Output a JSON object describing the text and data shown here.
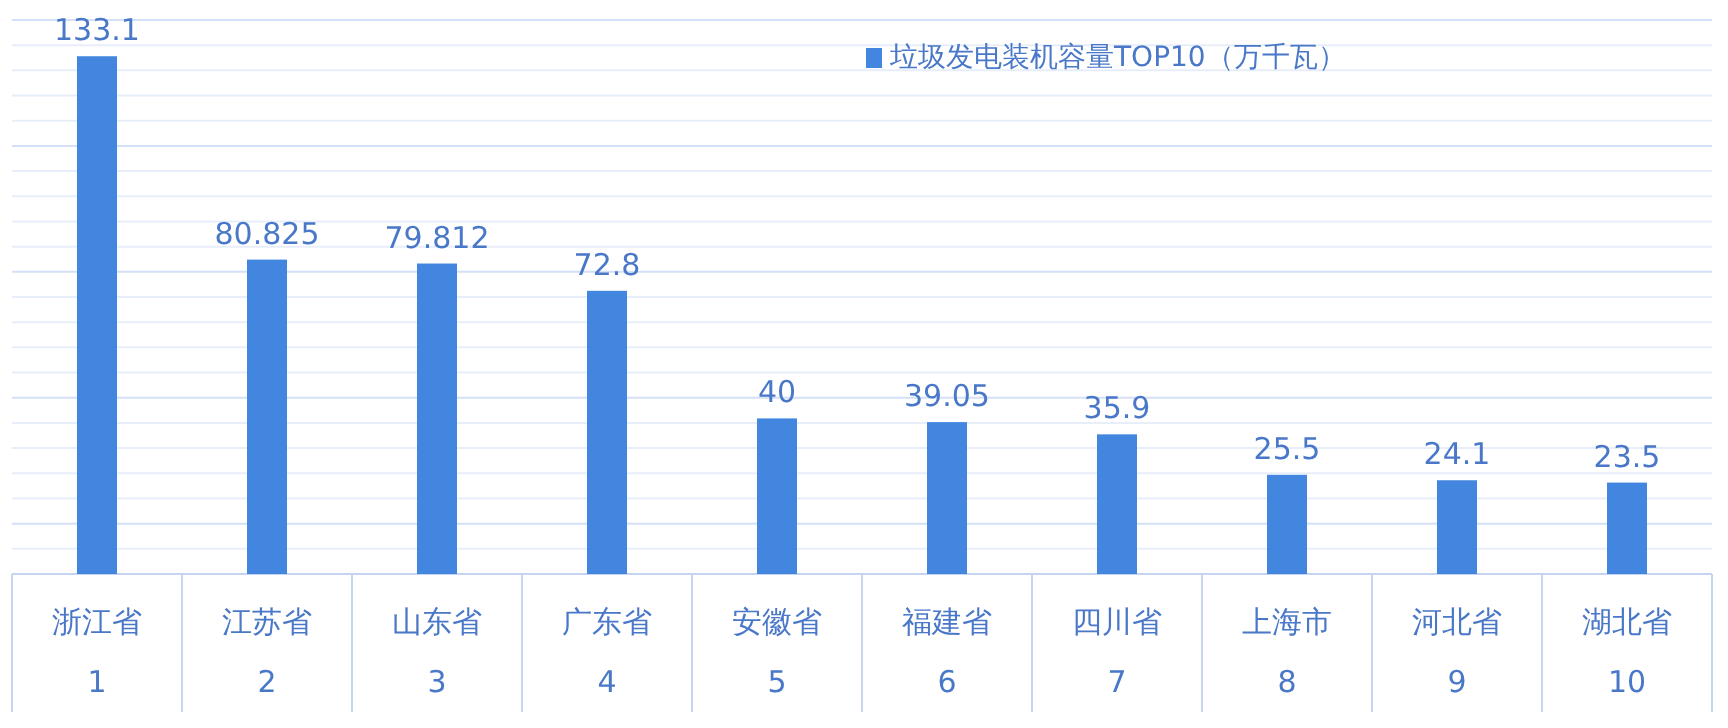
{
  "chart_data": {
    "type": "bar",
    "categories": [
      "浙江省\n1",
      "江苏省\n2",
      "山东省\n3",
      "广东省\n4",
      "安徽省\n5",
      "福建省\n6",
      "四川省\n7",
      "上海市\n8",
      "河北省\n9",
      "湖北省\n10"
    ],
    "series": [
      {
        "name": "垃圾发电装机容量TOP10（万千瓦）",
        "color": "#4286e0",
        "values": [
          133.1,
          80.825,
          79.812,
          72.8,
          40,
          39.05,
          35.9,
          25.5,
          24.1,
          23.5
        ]
      }
    ],
    "data_labels": true,
    "grid": "y",
    "legend": "top right"
  }
}
